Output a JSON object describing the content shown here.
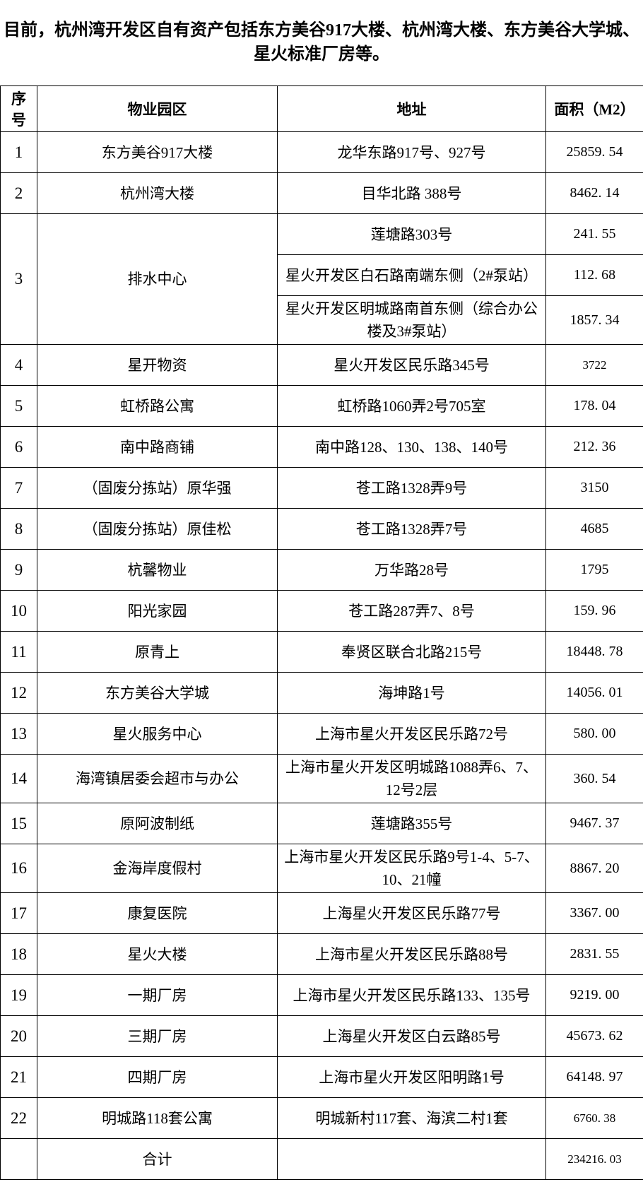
{
  "intro": {
    "lines": [
      "目前，杭州湾开发区自有资产包括东方美谷917大楼、杭州湾大楼、东方美谷大学城、",
      "星火标准厂房等。"
    ]
  },
  "table": {
    "headers": {
      "no": "序号",
      "park": "物业园区",
      "address": "地址",
      "area": "面积（M2）"
    },
    "rows": [
      {
        "no": "1",
        "park": "东方美谷917大楼",
        "entries": [
          {
            "address": "龙华东路917号、927号",
            "area": "25859. 54"
          }
        ]
      },
      {
        "no": "2",
        "park": "杭州湾大楼",
        "entries": [
          {
            "address": "目华北路 388号",
            "area": "8462. 14"
          }
        ]
      },
      {
        "no": "3",
        "park": "排水中心",
        "entries": [
          {
            "address": "莲塘路303号",
            "area": "241. 55"
          },
          {
            "address": "星火开发区白石路南端东侧（2#泵站）",
            "area": "112. 68"
          },
          {
            "address": "星火开发区明城路南首东侧（综合办公楼及3#泵站）",
            "area": "1857. 34"
          }
        ]
      },
      {
        "no": "4",
        "park": "星开物资",
        "entries": [
          {
            "address": "星火开发区民乐路345号",
            "area": "3722",
            "small": true
          }
        ]
      },
      {
        "no": "5",
        "park": "虹桥路公寓",
        "entries": [
          {
            "address": "虹桥路1060弄2号705室",
            "area": "178. 04"
          }
        ]
      },
      {
        "no": "6",
        "park": "南中路商铺",
        "entries": [
          {
            "address": "南中路128、130、138、140号",
            "area": "212. 36"
          }
        ]
      },
      {
        "no": "7",
        "park": "（固废分拣站）原华强",
        "entries": [
          {
            "address": "苍工路1328弄9号",
            "area": "3150"
          }
        ]
      },
      {
        "no": "8",
        "park": "（固废分拣站）原佳松",
        "entries": [
          {
            "address": "苍工路1328弄7号",
            "area": "4685"
          }
        ]
      },
      {
        "no": "9",
        "park": "杭馨物业",
        "entries": [
          {
            "address": "万华路28号",
            "area": "1795"
          }
        ]
      },
      {
        "no": "10",
        "park": "阳光家园",
        "entries": [
          {
            "address": "苍工路287弄7、8号",
            "area": "159. 96"
          }
        ]
      },
      {
        "no": "11",
        "park": "原青上",
        "entries": [
          {
            "address": "奉贤区联合北路215号",
            "area": "18448. 78"
          }
        ]
      },
      {
        "no": "12",
        "park": "东方美谷大学城",
        "entries": [
          {
            "address": "海坤路1号",
            "area": "14056. 01"
          }
        ]
      },
      {
        "no": "13",
        "park": "星火服务中心",
        "entries": [
          {
            "address": "上海市星火开发区民乐路72号",
            "area": "580. 00"
          }
        ]
      },
      {
        "no": "14",
        "park": "海湾镇居委会超市与办公",
        "entries": [
          {
            "address": "上海市星火开发区明城路1088弄6、7、12号2层",
            "area": "360. 54"
          }
        ]
      },
      {
        "no": "15",
        "park": "原阿波制纸",
        "entries": [
          {
            "address": "莲塘路355号",
            "area": "9467. 37"
          }
        ]
      },
      {
        "no": "16",
        "park": "金海岸度假村",
        "entries": [
          {
            "address": "上海市星火开发区民乐路9号1-4、5-7、10、21幢",
            "area": "8867. 20"
          }
        ]
      },
      {
        "no": "17",
        "park": "康复医院",
        "entries": [
          {
            "address": "上海星火开发区民乐路77号",
            "area": "3367. 00"
          }
        ]
      },
      {
        "no": "18",
        "park": "星火大楼",
        "entries": [
          {
            "address": "上海市星火开发区民乐路88号",
            "area": "2831. 55"
          }
        ]
      },
      {
        "no": "19",
        "park": "一期厂房",
        "entries": [
          {
            "address": "上海市星火开发区民乐路133、135号",
            "area": "9219. 00"
          }
        ]
      },
      {
        "no": "20",
        "park": "三期厂房",
        "entries": [
          {
            "address": "上海星火开发区白云路85号",
            "area": "45673. 62"
          }
        ]
      },
      {
        "no": "21",
        "park": "四期厂房",
        "entries": [
          {
            "address": "上海市星火开发区阳明路1号",
            "area": "64148. 97"
          }
        ]
      },
      {
        "no": "22",
        "park": "明城路118套公寓",
        "entries": [
          {
            "address": "明城新村117套、海滨二村1套",
            "area": "6760. 38",
            "small": true
          }
        ]
      },
      {
        "no": "",
        "park": "合计",
        "total": true,
        "entries": [
          {
            "address": "",
            "area": "234216. 03",
            "small": true
          }
        ]
      }
    ]
  }
}
